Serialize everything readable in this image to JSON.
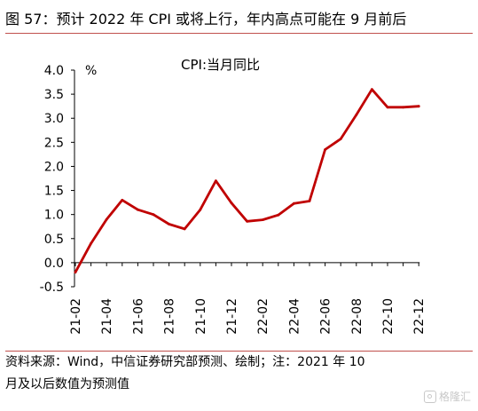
{
  "title": "图 57：预计 2022 年 CPI 或将上行，年内高点可能在 9 月前后",
  "source_line1": "资料来源：Wind，中信证券研究部预测、绘制；注：2021  年  10",
  "source_line2": "月及以后数值为预测值",
  "watermark": "格隆汇",
  "colors": {
    "line": "#c00000",
    "rule": "#c0504d",
    "axis": "#000000"
  },
  "chart_data": {
    "type": "line",
    "series": [
      {
        "name": "CPI:当月同比",
        "values": [
          -0.2,
          0.4,
          0.9,
          1.3,
          1.1,
          1.0,
          0.8,
          0.7,
          1.1,
          1.7,
          1.24,
          0.86,
          0.89,
          0.99,
          1.23,
          1.28,
          2.35,
          2.57,
          3.07,
          3.6,
          3.23,
          3.23,
          3.25
        ]
      }
    ],
    "x": [
      "21-02",
      "21-03",
      "21-04",
      "21-05",
      "21-06",
      "21-07",
      "21-08",
      "21-09",
      "21-10",
      "21-11",
      "21-12",
      "22-01",
      "22-02",
      "22-03",
      "22-04",
      "22-05",
      "22-06",
      "22-07",
      "22-08",
      "22-09",
      "22-10",
      "22-11",
      "22-12"
    ],
    "x_tick_labels": [
      "21-02",
      "21-04",
      "21-06",
      "21-08",
      "21-10",
      "21-12",
      "22-02",
      "22-04",
      "22-06",
      "22-08",
      "22-10",
      "22-12"
    ],
    "y_ticks": [
      "4.0",
      "3.5",
      "3.0",
      "2.5",
      "2.0",
      "1.5",
      "1.0",
      "0.5",
      "0.0",
      "-0.5"
    ],
    "ylabel": "%",
    "ylim": [
      -0.5,
      4.0
    ],
    "legend_text": "CPI:当月同比",
    "grid": false
  }
}
